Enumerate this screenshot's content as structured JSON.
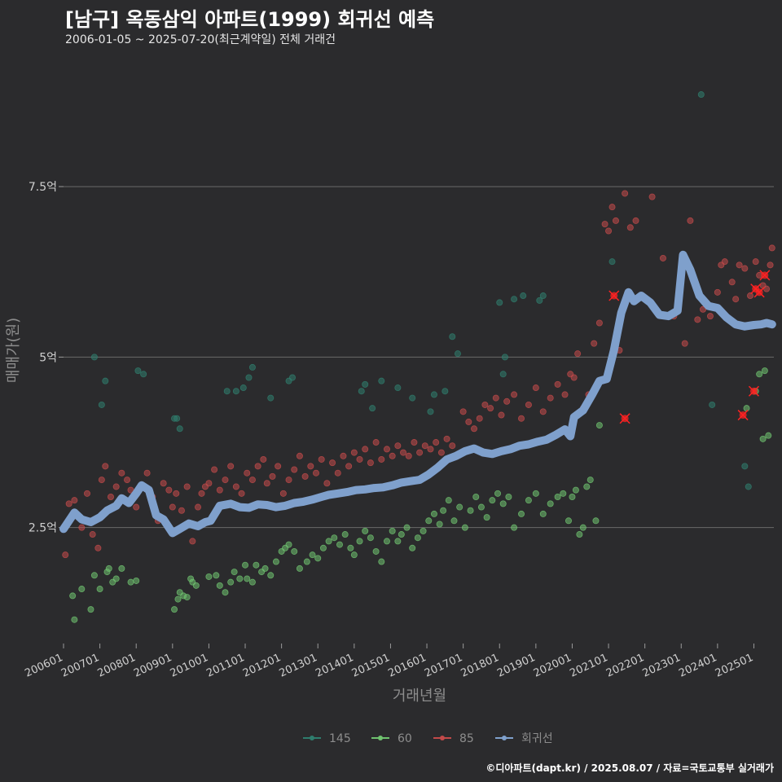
{
  "title": "[남구] 옥동삼익 아파트(1999) 회귀선 예측",
  "subtitle": "2006-01-05 ~ 2025-07-20(최근계약일) 전체 거래건",
  "caption": "©디아파트(dapt.kr) / 2025.08.07 / 자료=국토교통부 실거래가",
  "chart_data": {
    "type": "scatter",
    "title": "[남구] 옥동삼익 아파트(1999) 회귀선 예측",
    "subtitle": "2006-01-05 ~ 2025-07-20(최근계약일) 전체 거래건",
    "xlabel": "거래년월",
    "ylabel": "매매가(원)",
    "xlim": [
      2006.0,
      2025.55
    ],
    "ylim": [
      0.8,
      9.4
    ],
    "y_unit": "억",
    "yticks": [
      2.5,
      5,
      7.5
    ],
    "ytick_labels": [
      "2.5억",
      "5억",
      "7.5억"
    ],
    "xtick_labels": [
      "200601",
      "200701",
      "200801",
      "200901",
      "201001",
      "201101",
      "201201",
      "201301",
      "201401",
      "201501",
      "201601",
      "201701",
      "201801",
      "201901",
      "202001",
      "202101",
      "202201",
      "202301",
      "202401",
      "202501"
    ],
    "grid": "horizontal",
    "legend": "bottom",
    "series": [
      {
        "name": "145",
        "color": "#2f7d6d",
        "x": [
          2006.85,
          2007.05,
          2007.15,
          2008.05,
          2008.2,
          2009.05,
          2009.12,
          2009.2,
          2010.5,
          2010.75,
          2010.95,
          2011.1,
          2011.2,
          2011.7,
          2012.2,
          2012.3,
          2014.2,
          2014.3,
          2014.5,
          2014.75,
          2015.2,
          2015.6,
          2016.1,
          2016.2,
          2016.5,
          2016.7,
          2016.85,
          2018.0,
          2018.1,
          2018.15,
          2018.4,
          2018.65,
          2019.1,
          2019.2,
          2021.1,
          2023.55,
          2023.85,
          2024.75,
          2024.85
        ],
        "y": [
          5.0,
          4.3,
          4.65,
          4.8,
          4.75,
          4.1,
          4.1,
          3.95,
          4.5,
          4.5,
          4.55,
          4.7,
          4.85,
          4.4,
          4.65,
          4.7,
          4.5,
          4.6,
          4.25,
          4.65,
          4.55,
          4.4,
          4.2,
          4.45,
          4.5,
          5.3,
          5.05,
          5.8,
          4.75,
          5.0,
          5.85,
          5.9,
          5.83,
          5.9,
          6.4,
          8.85,
          4.3,
          3.4,
          3.1
        ]
      },
      {
        "name": "60",
        "color": "#6fc26f",
        "x": [
          2006.25,
          2006.3,
          2006.5,
          2006.75,
          2006.85,
          2007.0,
          2007.2,
          2007.25,
          2007.35,
          2007.45,
          2007.6,
          2007.85,
          2008.0,
          2009.05,
          2009.15,
          2009.2,
          2009.3,
          2009.4,
          2009.5,
          2009.55,
          2009.65,
          2010.0,
          2010.2,
          2010.3,
          2010.45,
          2010.6,
          2010.7,
          2010.85,
          2011.0,
          2011.05,
          2011.2,
          2011.3,
          2011.45,
          2011.55,
          2011.7,
          2011.85,
          2012.0,
          2012.1,
          2012.2,
          2012.35,
          2012.5,
          2012.7,
          2012.85,
          2013.0,
          2013.15,
          2013.3,
          2013.45,
          2013.6,
          2013.75,
          2013.9,
          2014.0,
          2014.15,
          2014.3,
          2014.45,
          2014.6,
          2014.75,
          2014.9,
          2015.05,
          2015.2,
          2015.3,
          2015.45,
          2015.6,
          2015.75,
          2015.9,
          2016.05,
          2016.2,
          2016.35,
          2016.45,
          2016.6,
          2016.75,
          2016.9,
          2017.05,
          2017.2,
          2017.35,
          2017.5,
          2017.65,
          2017.8,
          2017.95,
          2018.1,
          2018.25,
          2018.4,
          2018.6,
          2018.8,
          2019.0,
          2019.2,
          2019.4,
          2019.6,
          2019.75,
          2019.9,
          2020.0,
          2020.1,
          2020.2,
          2020.3,
          2020.4,
          2020.5,
          2020.65,
          2020.75,
          2024.8,
          2025.05,
          2025.15,
          2025.25,
          2025.3,
          2025.4
        ],
        "y": [
          1.5,
          1.15,
          1.6,
          1.3,
          1.8,
          1.6,
          1.85,
          1.9,
          1.7,
          1.75,
          1.9,
          1.7,
          1.72,
          1.3,
          1.45,
          1.55,
          1.5,
          1.48,
          1.75,
          1.7,
          1.65,
          1.78,
          1.8,
          1.65,
          1.55,
          1.7,
          1.85,
          1.75,
          1.95,
          1.75,
          1.7,
          1.95,
          1.85,
          1.9,
          1.8,
          2.0,
          2.15,
          2.2,
          2.25,
          2.15,
          1.9,
          2.0,
          2.1,
          2.05,
          2.2,
          2.3,
          2.35,
          2.25,
          2.4,
          2.2,
          2.1,
          2.3,
          2.45,
          2.35,
          2.15,
          2.0,
          2.3,
          2.45,
          2.3,
          2.4,
          2.5,
          2.2,
          2.35,
          2.45,
          2.6,
          2.7,
          2.55,
          2.75,
          2.9,
          2.6,
          2.8,
          2.5,
          2.75,
          2.95,
          2.8,
          2.65,
          2.9,
          3.0,
          2.85,
          2.95,
          2.5,
          2.7,
          2.9,
          3.0,
          2.7,
          2.85,
          2.95,
          3.0,
          2.6,
          2.95,
          3.05,
          2.4,
          2.5,
          3.1,
          3.2,
          2.6,
          4.0,
          4.25,
          4.5,
          4.75,
          3.8,
          4.8,
          3.85
        ]
      },
      {
        "name": "85",
        "color": "#c24a4a",
        "x": [
          2006.05,
          2006.15,
          2006.3,
          2006.5,
          2006.65,
          2006.8,
          2006.95,
          2007.05,
          2007.15,
          2007.3,
          2007.45,
          2007.6,
          2007.75,
          2007.85,
          2008.0,
          2008.15,
          2008.3,
          2008.45,
          2008.6,
          2008.75,
          2008.9,
          2009.0,
          2009.1,
          2009.25,
          2009.4,
          2009.55,
          2009.7,
          2009.8,
          2009.9,
          2010.0,
          2010.15,
          2010.3,
          2010.45,
          2010.6,
          2010.75,
          2010.9,
          2011.05,
          2011.2,
          2011.35,
          2011.5,
          2011.6,
          2011.75,
          2011.9,
          2012.05,
          2012.2,
          2012.35,
          2012.5,
          2012.65,
          2012.8,
          2012.95,
          2013.1,
          2013.25,
          2013.4,
          2013.55,
          2013.7,
          2013.85,
          2014.0,
          2014.15,
          2014.3,
          2014.45,
          2014.6,
          2014.75,
          2014.9,
          2015.05,
          2015.2,
          2015.35,
          2015.5,
          2015.65,
          2015.8,
          2015.95,
          2016.1,
          2016.25,
          2016.4,
          2016.55,
          2016.7,
          2016.85,
          2017.0,
          2017.15,
          2017.3,
          2017.45,
          2017.6,
          2017.75,
          2017.9,
          2018.05,
          2018.2,
          2018.4,
          2018.6,
          2018.8,
          2019.0,
          2019.2,
          2019.4,
          2019.6,
          2019.8,
          2019.95,
          2020.05,
          2020.15,
          2020.3,
          2020.45,
          2020.6,
          2020.75,
          2020.9,
          2021.0,
          2021.1,
          2021.2,
          2021.3,
          2021.45,
          2021.6,
          2021.75,
          2022.2,
          2022.5,
          2022.8,
          2023.1,
          2023.25,
          2023.45,
          2023.6,
          2023.8,
          2024.0,
          2024.1,
          2024.2,
          2024.4,
          2024.5,
          2024.6,
          2024.75,
          2024.9,
          2025.05,
          2025.15,
          2025.25,
          2025.35,
          2025.45,
          2025.5
        ],
        "y": [
          2.1,
          2.85,
          2.9,
          2.5,
          3.0,
          2.4,
          2.2,
          3.2,
          3.4,
          2.95,
          3.1,
          3.3,
          3.2,
          3.05,
          2.8,
          3.1,
          3.3,
          2.95,
          2.6,
          3.15,
          3.05,
          2.8,
          3.0,
          2.75,
          3.1,
          2.3,
          2.8,
          3.0,
          3.1,
          3.15,
          3.35,
          3.05,
          3.2,
          3.4,
          3.1,
          3.0,
          3.3,
          3.2,
          3.4,
          3.5,
          3.15,
          3.25,
          3.4,
          3.0,
          3.2,
          3.35,
          3.55,
          3.25,
          3.4,
          3.3,
          3.5,
          3.15,
          3.45,
          3.3,
          3.55,
          3.4,
          3.6,
          3.5,
          3.65,
          3.45,
          3.75,
          3.5,
          3.65,
          3.55,
          3.7,
          3.6,
          3.55,
          3.75,
          3.6,
          3.7,
          3.65,
          3.75,
          3.6,
          3.8,
          3.7,
          3.55,
          4.2,
          4.05,
          3.95,
          4.1,
          4.3,
          4.25,
          4.4,
          4.15,
          4.35,
          4.45,
          4.1,
          4.3,
          4.55,
          4.2,
          4.4,
          4.6,
          4.45,
          4.75,
          4.7,
          5.05,
          4.25,
          4.45,
          5.2,
          5.5,
          6.95,
          6.85,
          7.2,
          7.0,
          5.1,
          7.4,
          6.9,
          7.0,
          7.35,
          6.45,
          5.6,
          5.2,
          7.0,
          5.55,
          5.7,
          5.6,
          5.95,
          6.35,
          6.4,
          6.1,
          5.85,
          6.35,
          6.3,
          5.9,
          6.4,
          6.2,
          6.05,
          6.0,
          6.35,
          6.6
        ]
      },
      {
        "name": "회귀선",
        "color": "#7fa0cc",
        "x": [
          2006.0,
          2006.15,
          2006.3,
          2006.5,
          2006.75,
          2007.0,
          2007.2,
          2007.45,
          2007.6,
          2007.8,
          2008.0,
          2008.15,
          2008.35,
          2008.55,
          2008.75,
          2009.0,
          2009.2,
          2009.45,
          2009.7,
          2009.9,
          2010.05,
          2010.3,
          2010.6,
          2010.85,
          2011.1,
          2011.35,
          2011.6,
          2011.85,
          2012.1,
          2012.35,
          2012.6,
          2012.85,
          2013.1,
          2013.3,
          2013.55,
          2013.8,
          2014.05,
          2014.3,
          2014.55,
          2014.8,
          2015.05,
          2015.3,
          2015.55,
          2015.8,
          2016.05,
          2016.3,
          2016.55,
          2016.8,
          2017.05,
          2017.3,
          2017.55,
          2017.8,
          2018.05,
          2018.3,
          2018.55,
          2018.8,
          2019.05,
          2019.3,
          2019.55,
          2019.8,
          2019.95,
          2020.05,
          2020.3,
          2020.55,
          2020.75,
          2020.95,
          2021.15,
          2021.35,
          2021.55,
          2021.7,
          2021.9,
          2022.15,
          2022.4,
          2022.65,
          2022.9,
          2023.05,
          2023.25,
          2023.5,
          2023.75,
          2024.0,
          2024.25,
          2024.5,
          2024.75,
          2025.0,
          2025.2,
          2025.35,
          2025.5
        ],
        "y": [
          2.48,
          2.6,
          2.72,
          2.62,
          2.58,
          2.65,
          2.75,
          2.82,
          2.93,
          2.86,
          3.0,
          3.12,
          3.05,
          2.68,
          2.62,
          2.42,
          2.48,
          2.56,
          2.52,
          2.58,
          2.6,
          2.82,
          2.85,
          2.8,
          2.79,
          2.84,
          2.83,
          2.8,
          2.82,
          2.86,
          2.88,
          2.91,
          2.95,
          2.98,
          3.0,
          3.02,
          3.05,
          3.06,
          3.08,
          3.09,
          3.12,
          3.16,
          3.18,
          3.2,
          3.28,
          3.38,
          3.5,
          3.55,
          3.62,
          3.66,
          3.6,
          3.58,
          3.62,
          3.65,
          3.7,
          3.72,
          3.76,
          3.79,
          3.86,
          3.94,
          3.84,
          4.12,
          4.22,
          4.45,
          4.65,
          4.68,
          5.1,
          5.65,
          5.95,
          5.82,
          5.9,
          5.8,
          5.62,
          5.6,
          5.68,
          6.5,
          6.28,
          5.9,
          5.75,
          5.72,
          5.58,
          5.48,
          5.45,
          5.47,
          5.48,
          5.5,
          5.48
        ]
      }
    ],
    "highlighted_points": {
      "color": "#ff2222",
      "x": [
        2021.15,
        2021.45,
        2024.7,
        2025.0,
        2025.05,
        2025.15,
        2025.3
      ],
      "y": [
        5.9,
        4.1,
        4.15,
        4.5,
        6.0,
        5.95,
        6.2
      ]
    }
  }
}
